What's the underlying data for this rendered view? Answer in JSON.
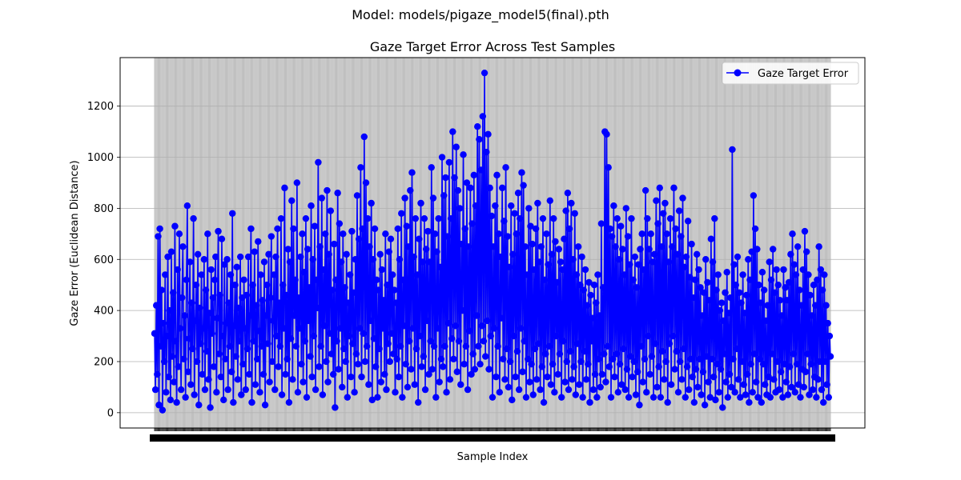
{
  "figure": {
    "suptitle": "Model: models/pigaze_model5(final).pth"
  },
  "chart_data": {
    "type": "line",
    "title": "Gaze Target Error Across Test Samples",
    "xlabel": "Sample Index",
    "ylabel": "Gaze Error (Euclidean Distance)",
    "ylim": [
      -60,
      1390
    ],
    "yticks": [
      0,
      200,
      400,
      600,
      800,
      1000,
      1200
    ],
    "grid": true,
    "legend_position": "top-right",
    "x_tick_labels_overlapping": true,
    "series": [
      {
        "name": "Gaze Target Error",
        "color": "#0000ff",
        "marker": "circle",
        "values": [
          310,
          90,
          420,
          150,
          690,
          30,
          720,
          260,
          480,
          10,
          350,
          200,
          540,
          80,
          300,
          610,
          140,
          400,
          50,
          630,
          220,
          470,
          120,
          730,
          280,
          40,
          560,
          180,
          700,
          330,
          90,
          450,
          650,
          210,
          380,
          60,
          520,
          810,
          160,
          290,
          590,
          110,
          430,
          250,
          760,
          70,
          360,
          500,
          200,
          620,
          30,
          410,
          270,
          540,
          150,
          330,
          600,
          90,
          480,
          240,
          700,
          130,
          390,
          20,
          560,
          310,
          450,
          180,
          520,
          610,
          80,
          370,
          710,
          230,
          460,
          140,
          680,
          300,
          50,
          580,
          210,
          350,
          600,
          90,
          430,
          260,
          540,
          160,
          780,
          40,
          340,
          500,
          220,
          570,
          130,
          410,
          280,
          610,
          70,
          450,
          190,
          520,
          330,
          90,
          460,
          250,
          610,
          150,
          380,
          720,
          40,
          500,
          280,
          630,
          110,
          420,
          210,
          670,
          320,
          80,
          540,
          260,
          440,
          150,
          590,
          30,
          380,
          500,
          270,
          620,
          120,
          450,
          690,
          200,
          360,
          540,
          90,
          610,
          300,
          720,
          180,
          430,
          260,
          760,
          70,
          500,
          330,
          880,
          150,
          460,
          210,
          640,
          40,
          590,
          290,
          830,
          130,
          720,
          380,
          520,
          260,
          900,
          80,
          450,
          330,
          610,
          190,
          700,
          120,
          550,
          280,
          760,
          60,
          640,
          360,
          490,
          220,
          810,
          140,
          600,
          300,
          730,
          90,
          520,
          410,
          980,
          180,
          650,
          260,
          840,
          70,
          560,
          340,
          700,
          200,
          870,
          120,
          620,
          310,
          790,
          230,
          480,
          150,
          660,
          20,
          520,
          280,
          860,
          170,
          740,
          330,
          590,
          100,
          700,
          250,
          490,
          200,
          620,
          60,
          430,
          300,
          540,
          140,
          710,
          270,
          470,
          80,
          600,
          230,
          850,
          190,
          680,
          330,
          960,
          140,
          720,
          310,
          1080,
          200,
          900,
          260,
          760,
          110,
          650,
          360,
          820,
          50,
          600,
          290,
          720,
          180,
          520,
          60,
          480,
          250,
          620,
          120,
          560,
          330,
          440,
          150,
          700,
          90,
          500,
          270,
          630,
          200,
          680,
          310,
          540,
          230,
          480,
          80,
          430,
          210,
          720,
          140,
          600,
          260,
          780,
          60,
          520,
          340,
          840,
          190,
          730,
          100,
          650,
          280,
          870,
          170,
          940,
          330,
          610,
          110,
          760,
          250,
          540,
          40,
          680,
          300,
          820,
          180,
          590,
          220,
          760,
          90,
          640,
          360,
          710,
          150,
          590,
          280,
          960,
          170,
          840,
          260,
          700,
          60,
          630,
          330,
          760,
          120,
          570,
          210,
          1000,
          180,
          850,
          260,
          920,
          80,
          690,
          350,
          980,
          130,
          760,
          290,
          1100,
          210,
          920,
          340,
          1040,
          160,
          870,
          280,
          800,
          110,
          660,
          400,
          1010,
          190,
          720,
          260,
          900,
          90,
          650,
          320,
          880,
          150,
          740,
          230,
          930,
          170,
          810,
          380,
          1120,
          260,
          1070,
          190,
          950,
          340,
          1160,
          280,
          1330,
          220,
          1020,
          360,
          1090,
          170,
          880,
          300,
          770,
          60,
          650,
          330,
          810,
          140,
          930,
          260,
          700,
          80,
          610,
          370,
          880,
          210,
          750,
          130,
          960,
          250,
          690,
          100,
          570,
          200,
          810,
          50,
          620,
          300,
          780,
          140,
          700,
          240,
          860,
          90,
          760,
          330,
          940,
          160,
          890,
          280,
          650,
          60,
          540,
          210,
          800,
          120,
          730,
          190,
          660,
          70,
          560,
          250,
          720,
          130,
          820,
          270,
          590,
          90,
          650,
          180,
          760,
          40,
          520,
          230,
          700,
          140,
          580,
          260,
          830,
          110,
          620,
          190,
          760,
          80,
          670,
          300,
          510,
          150,
          640,
          230,
          590,
          60,
          560,
          280,
          680,
          120,
          790,
          200,
          860,
          90,
          720,
          240,
          820,
          130,
          600,
          180,
          780,
          70,
          540,
          270,
          650,
          110,
          500,
          200,
          610,
          60,
          480,
          240,
          560,
          130,
          420,
          190,
          510,
          40,
          460,
          280,
          370,
          90,
          500,
          150,
          430,
          60,
          540,
          210,
          380,
          100,
          740,
          150,
          490,
          230,
          1100,
          120,
          1090,
          260,
          960,
          180,
          720,
          60,
          690,
          210,
          810,
          140,
          650,
          230,
          760,
          80,
          600,
          190,
          730,
          110,
          640,
          250,
          540,
          90,
          800,
          170,
          690,
          60,
          580,
          220,
          760,
          140,
          520,
          200,
          610,
          70,
          490,
          160,
          580,
          30,
          640,
          260,
          700,
          120,
          560,
          210,
          870,
          80,
          760,
          300,
          640,
          150,
          700,
          220,
          590,
          60,
          620,
          270,
          830,
          100,
          740,
          180,
          880,
          60,
          650,
          240,
          780,
          130,
          820,
          200,
          700,
          40,
          590,
          270,
          760,
          110,
          650,
          300,
          880,
          170,
          720,
          240,
          620,
          80,
          790,
          200,
          690,
          130,
          840,
          250,
          570,
          60,
          610,
          180,
          750,
          90,
          530,
          210,
          660,
          140,
          450,
          40,
          520,
          170,
          620,
          100,
          560,
          210,
          490,
          70,
          380,
          160,
          470,
          30,
          600,
          220,
          510,
          120,
          440,
          60,
          680,
          210,
          590,
          140,
          760,
          50,
          480,
          190,
          540,
          80,
          400,
          170,
          430,
          20,
          360,
          230,
          470,
          120,
          550,
          60,
          390,
          150,
          450,
          100,
          1030,
          210,
          580,
          80,
          500,
          250,
          610,
          130,
          470,
          60,
          430,
          200,
          540,
          110,
          390,
          70,
          460,
          150,
          600,
          40,
          520,
          190,
          630,
          80,
          850,
          230,
          720,
          120,
          640,
          60,
          500,
          210,
          430,
          40,
          550,
          190,
          480,
          110,
          360,
          70,
          420,
          140,
          590,
          60,
          520,
          230,
          640,
          130,
          470,
          80,
          560,
          200,
          500,
          90,
          440,
          160,
          380,
          60,
          560,
          190,
          490,
          120,
          440,
          70,
          510,
          180,
          620,
          100,
          700,
          230,
          580,
          80,
          540,
          190,
          650,
          110,
          480,
          60,
          420,
          170,
          560,
          100,
          710,
          160,
          630,
          230,
          540,
          70,
          460,
          190,
          380,
          90,
          500,
          140,
          420,
          60,
          520,
          130,
          650,
          200,
          560,
          90,
          480,
          40,
          540,
          200,
          420,
          110,
          350,
          60,
          300,
          220
        ]
      }
    ]
  }
}
